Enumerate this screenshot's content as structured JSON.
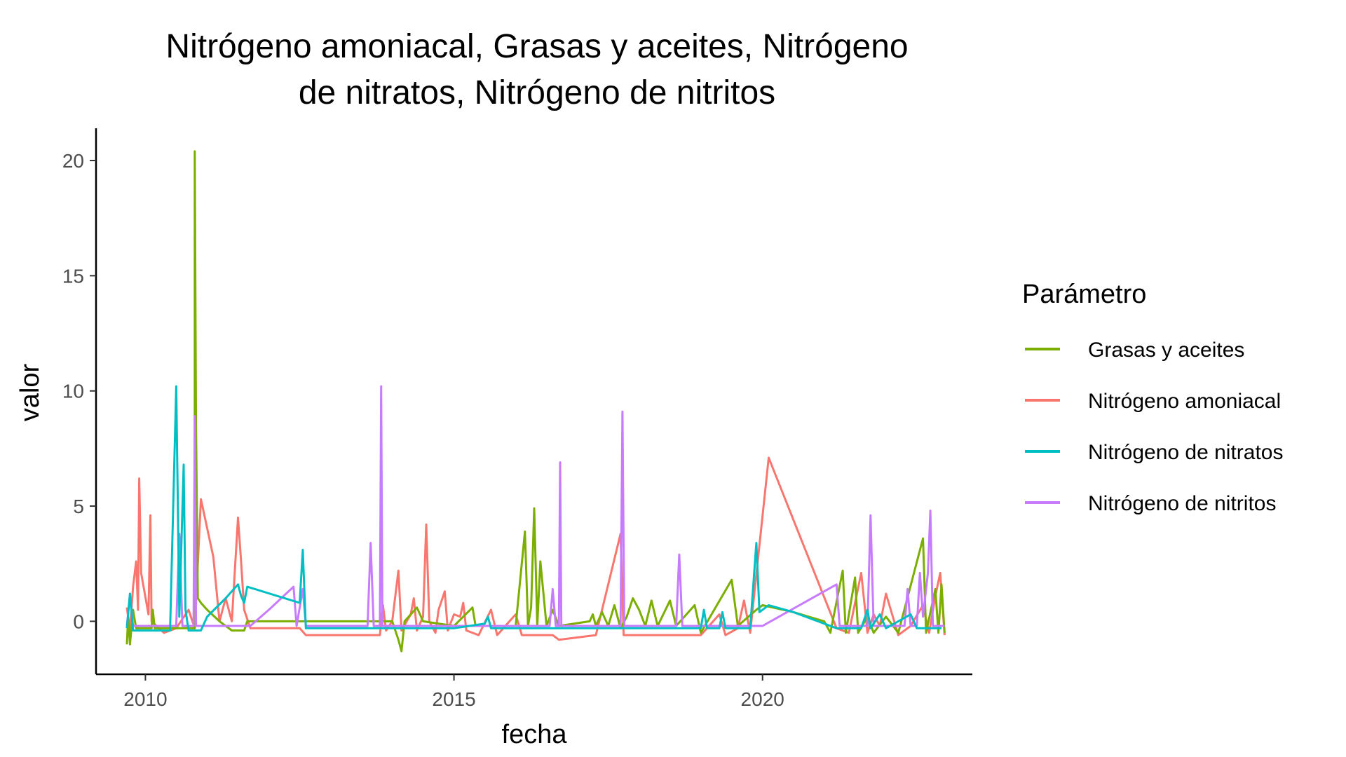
{
  "chart_data": {
    "type": "line",
    "title_lines": [
      "Nitrógeno amoniacal, Grasas y aceites, Nitrógeno",
      "de nitratos, Nitrógeno de nitritos"
    ],
    "xlabel": "fecha",
    "ylabel": "valor",
    "x_ticks": [
      2010,
      2015,
      2020
    ],
    "x_tick_labels": [
      "2010",
      "2015",
      "2020"
    ],
    "y_ticks": [
      0,
      5,
      10,
      15,
      20
    ],
    "y_tick_labels": [
      "0",
      "5",
      "10",
      "15",
      "20"
    ],
    "xlim": [
      2009.2,
      2023.4
    ],
    "ylim": [
      -2.3,
      21.4
    ],
    "grid": false,
    "legend": {
      "title": "Parámetro",
      "placement": "right",
      "items": [
        {
          "label": "Grasas y aceites",
          "color": "#7CAE00"
        },
        {
          "label": "Nitrógeno amoniacal",
          "color": "#F8766D"
        },
        {
          "label": "Nitrógeno de nitratos",
          "color": "#00BFC4"
        },
        {
          "label": "Nitrógeno de nitritos",
          "color": "#C77CFF"
        }
      ]
    },
    "series": [
      {
        "name": "Nitrógeno amoniacal",
        "color": "#F8766D",
        "points": [
          [
            2009.7,
            0.6
          ],
          [
            2009.75,
            -0.4
          ],
          [
            2009.8,
            1.5
          ],
          [
            2009.85,
            2.6
          ],
          [
            2009.88,
            0.5
          ],
          [
            2009.9,
            6.2
          ],
          [
            2009.93,
            2.1
          ],
          [
            2010.05,
            0.3
          ],
          [
            2010.08,
            4.6
          ],
          [
            2010.1,
            0
          ],
          [
            2010.3,
            -0.5
          ],
          [
            2010.5,
            -0.3
          ],
          [
            2010.7,
            0.5
          ],
          [
            2010.8,
            -0.3
          ],
          [
            2010.9,
            5.3
          ],
          [
            2011.1,
            2.8
          ],
          [
            2011.2,
            0
          ],
          [
            2011.3,
            1
          ],
          [
            2011.4,
            0
          ],
          [
            2011.5,
            4.5
          ],
          [
            2011.55,
            2.6
          ],
          [
            2011.6,
            0.5
          ],
          [
            2011.7,
            -0.3
          ],
          [
            2012.3,
            -0.3
          ],
          [
            2012.5,
            -0.3
          ],
          [
            2012.6,
            -0.6
          ],
          [
            2013.5,
            -0.6
          ],
          [
            2013.8,
            -0.6
          ],
          [
            2013.85,
            0.7
          ],
          [
            2013.9,
            -0.4
          ],
          [
            2014.0,
            0
          ],
          [
            2014.1,
            2.2
          ],
          [
            2014.15,
            -0.4
          ],
          [
            2014.3,
            0.3
          ],
          [
            2014.35,
            1
          ],
          [
            2014.4,
            -0.4
          ],
          [
            2014.5,
            0.2
          ],
          [
            2014.55,
            4.2
          ],
          [
            2014.6,
            0
          ],
          [
            2014.7,
            -0.5
          ],
          [
            2014.75,
            0.5
          ],
          [
            2014.85,
            1.3
          ],
          [
            2014.9,
            -0.4
          ],
          [
            2015.0,
            0.3
          ],
          [
            2015.1,
            0.2
          ],
          [
            2015.15,
            0.8
          ],
          [
            2015.2,
            -0.4
          ],
          [
            2015.4,
            -0.6
          ],
          [
            2015.6,
            0.5
          ],
          [
            2015.7,
            -0.6
          ],
          [
            2016.0,
            0.3
          ],
          [
            2016.1,
            -0.6
          ],
          [
            2016.6,
            -0.6
          ],
          [
            2016.7,
            -0.8
          ],
          [
            2017.3,
            -0.6
          ],
          [
            2017.7,
            3.8
          ],
          [
            2017.75,
            -0.6
          ],
          [
            2018.0,
            -0.6
          ],
          [
            2018.5,
            -0.6
          ],
          [
            2019.0,
            -0.6
          ],
          [
            2019.3,
            0.3
          ],
          [
            2019.4,
            -0.6
          ],
          [
            2019.6,
            -0.3
          ],
          [
            2019.7,
            0.9
          ],
          [
            2019.8,
            -0.5
          ],
          [
            2020.1,
            7.1
          ],
          [
            2021.2,
            -0.3
          ],
          [
            2021.4,
            -0.5
          ],
          [
            2021.6,
            2.1
          ],
          [
            2021.7,
            -0.5
          ],
          [
            2021.8,
            0.3
          ],
          [
            2021.9,
            -0.2
          ],
          [
            2022.0,
            1.2
          ],
          [
            2022.2,
            -0.6
          ],
          [
            2022.4,
            -0.2
          ],
          [
            2022.6,
            0.7
          ],
          [
            2022.7,
            -0.5
          ],
          [
            2022.8,
            1.1
          ],
          [
            2022.88,
            2.1
          ],
          [
            2022.95,
            -0.6
          ]
        ]
      },
      {
        "name": "Grasas y aceites",
        "color": "#7CAE00",
        "points": [
          [
            2009.7,
            -1
          ],
          [
            2009.72,
            0.2
          ],
          [
            2009.75,
            -1
          ],
          [
            2009.8,
            0.5
          ],
          [
            2009.85,
            -0.3
          ],
          [
            2010.1,
            -0.3
          ],
          [
            2010.12,
            0.5
          ],
          [
            2010.15,
            -0.3
          ],
          [
            2010.5,
            -0.3
          ],
          [
            2010.8,
            -0.3
          ],
          [
            2010.8,
            20.4
          ],
          [
            2010.82,
            8.5
          ],
          [
            2010.85,
            1
          ],
          [
            2010.9,
            0.8
          ],
          [
            2011.0,
            0.5
          ],
          [
            2011.2,
            0
          ],
          [
            2011.4,
            -0.4
          ],
          [
            2011.6,
            -0.4
          ],
          [
            2011.65,
            0
          ],
          [
            2012.5,
            0
          ],
          [
            2013.0,
            0
          ],
          [
            2013.5,
            0
          ],
          [
            2014.0,
            0
          ],
          [
            2014.1,
            -0.8
          ],
          [
            2014.15,
            -1.3
          ],
          [
            2014.2,
            0
          ],
          [
            2014.4,
            0.6
          ],
          [
            2014.5,
            0
          ],
          [
            2015.0,
            -0.2
          ],
          [
            2015.3,
            0.6
          ],
          [
            2015.35,
            -0.2
          ],
          [
            2016.0,
            -0.2
          ],
          [
            2016.15,
            3.9
          ],
          [
            2016.2,
            -0.2
          ],
          [
            2016.25,
            0.6
          ],
          [
            2016.3,
            4.9
          ],
          [
            2016.35,
            -0.2
          ],
          [
            2016.4,
            2.6
          ],
          [
            2016.5,
            -0.2
          ],
          [
            2016.6,
            0.5
          ],
          [
            2016.7,
            -0.2
          ],
          [
            2017.2,
            0
          ],
          [
            2017.25,
            0.3
          ],
          [
            2017.3,
            -0.2
          ],
          [
            2017.4,
            0.4
          ],
          [
            2017.5,
            -0.2
          ],
          [
            2017.6,
            0.7
          ],
          [
            2017.7,
            -0.3
          ],
          [
            2017.8,
            0.2
          ],
          [
            2017.9,
            1
          ],
          [
            2018.0,
            0.5
          ],
          [
            2018.1,
            -0.2
          ],
          [
            2018.2,
            0.9
          ],
          [
            2018.3,
            -0.2
          ],
          [
            2018.5,
            0.9
          ],
          [
            2018.6,
            -0.2
          ],
          [
            2018.9,
            0.7
          ],
          [
            2019.0,
            -0.5
          ],
          [
            2019.5,
            1.8
          ],
          [
            2019.6,
            -0.2
          ],
          [
            2019.9,
            0.5
          ],
          [
            2020.0,
            0.7
          ],
          [
            2020.5,
            0.4
          ],
          [
            2021.0,
            0
          ],
          [
            2021.1,
            -0.5
          ],
          [
            2021.3,
            2.2
          ],
          [
            2021.35,
            -0.5
          ],
          [
            2021.5,
            1.9
          ],
          [
            2021.55,
            -0.5
          ],
          [
            2021.7,
            0.2
          ],
          [
            2021.8,
            -0.5
          ],
          [
            2022.0,
            0.2
          ],
          [
            2022.2,
            -0.5
          ],
          [
            2022.6,
            3.6
          ],
          [
            2022.65,
            -0.5
          ],
          [
            2022.8,
            1.4
          ],
          [
            2022.85,
            -0.5
          ],
          [
            2022.9,
            1.6
          ],
          [
            2022.95,
            -0.5
          ]
        ]
      },
      {
        "name": "Nitrógeno de nitritos",
        "color": "#C77CFF",
        "points": [
          [
            2009.7,
            -0.2
          ],
          [
            2009.75,
            1.2
          ],
          [
            2009.8,
            -0.2
          ],
          [
            2010.5,
            -0.2
          ],
          [
            2010.55,
            3.8
          ],
          [
            2010.6,
            -0.2
          ],
          [
            2010.78,
            -0.2
          ],
          [
            2010.8,
            8.9
          ],
          [
            2010.82,
            -0.2
          ],
          [
            2011.5,
            -0.2
          ],
          [
            2011.7,
            -0.2
          ],
          [
            2012.0,
            0.5
          ],
          [
            2012.4,
            1.5
          ],
          [
            2012.45,
            -0.2
          ],
          [
            2012.55,
            1.4
          ],
          [
            2012.6,
            -0.2
          ],
          [
            2013.6,
            -0.2
          ],
          [
            2013.65,
            3.4
          ],
          [
            2013.7,
            -0.2
          ],
          [
            2013.8,
            -0.2
          ],
          [
            2013.82,
            10.2
          ],
          [
            2013.84,
            -0.2
          ],
          [
            2016.55,
            -0.2
          ],
          [
            2016.6,
            1.4
          ],
          [
            2016.65,
            -0.2
          ],
          [
            2016.7,
            -0.2
          ],
          [
            2016.72,
            6.9
          ],
          [
            2016.74,
            -0.2
          ],
          [
            2017.7,
            -0.2
          ],
          [
            2017.73,
            9.1
          ],
          [
            2017.76,
            -0.2
          ],
          [
            2018.6,
            -0.2
          ],
          [
            2018.65,
            2.9
          ],
          [
            2018.7,
            -0.2
          ],
          [
            2020.0,
            -0.2
          ],
          [
            2021.2,
            1.6
          ],
          [
            2021.25,
            -0.2
          ],
          [
            2021.7,
            -0.2
          ],
          [
            2021.75,
            4.6
          ],
          [
            2021.8,
            -0.2
          ],
          [
            2022.3,
            -0.2
          ],
          [
            2022.35,
            1.4
          ],
          [
            2022.4,
            -0.2
          ],
          [
            2022.5,
            -0.2
          ],
          [
            2022.55,
            2.1
          ],
          [
            2022.6,
            0.2
          ],
          [
            2022.68,
            2.1
          ],
          [
            2022.72,
            4.8
          ],
          [
            2022.76,
            -0.2
          ],
          [
            2022.95,
            -0.2
          ]
        ]
      },
      {
        "name": "Nitrógeno de nitratos",
        "color": "#00BFC4",
        "points": [
          [
            2009.7,
            -0.3
          ],
          [
            2009.75,
            1.2
          ],
          [
            2009.8,
            -0.4
          ],
          [
            2010.4,
            -0.4
          ],
          [
            2010.5,
            10.2
          ],
          [
            2010.55,
            0.2
          ],
          [
            2010.6,
            4.9
          ],
          [
            2010.62,
            6.8
          ],
          [
            2010.65,
            0.5
          ],
          [
            2010.7,
            -0.4
          ],
          [
            2010.9,
            -0.4
          ],
          [
            2011.0,
            0.2
          ],
          [
            2011.3,
            1
          ],
          [
            2011.5,
            1.6
          ],
          [
            2011.55,
            1.1
          ],
          [
            2011.6,
            0.8
          ],
          [
            2011.65,
            1.5
          ],
          [
            2012.5,
            0.8
          ],
          [
            2012.55,
            3.1
          ],
          [
            2012.6,
            -0.3
          ],
          [
            2014.5,
            -0.3
          ],
          [
            2015.0,
            -0.3
          ],
          [
            2015.5,
            -0.1
          ],
          [
            2015.55,
            0.2
          ],
          [
            2015.6,
            -0.3
          ],
          [
            2016.5,
            -0.3
          ],
          [
            2017.0,
            -0.3
          ],
          [
            2018.0,
            -0.3
          ],
          [
            2019.0,
            -0.3
          ],
          [
            2019.05,
            0.5
          ],
          [
            2019.1,
            -0.3
          ],
          [
            2019.3,
            -0.3
          ],
          [
            2019.35,
            0.4
          ],
          [
            2019.4,
            -0.3
          ],
          [
            2019.8,
            -0.3
          ],
          [
            2019.9,
            3.4
          ],
          [
            2019.95,
            0.4
          ],
          [
            2020.1,
            0.7
          ],
          [
            2020.5,
            0.4
          ],
          [
            2021.2,
            -0.3
          ],
          [
            2021.6,
            -0.3
          ],
          [
            2021.7,
            0.5
          ],
          [
            2021.75,
            -0.3
          ],
          [
            2021.9,
            0.3
          ],
          [
            2022.0,
            -0.3
          ],
          [
            2022.4,
            0.3
          ],
          [
            2022.5,
            -0.3
          ],
          [
            2022.9,
            -0.3
          ]
        ]
      }
    ]
  }
}
